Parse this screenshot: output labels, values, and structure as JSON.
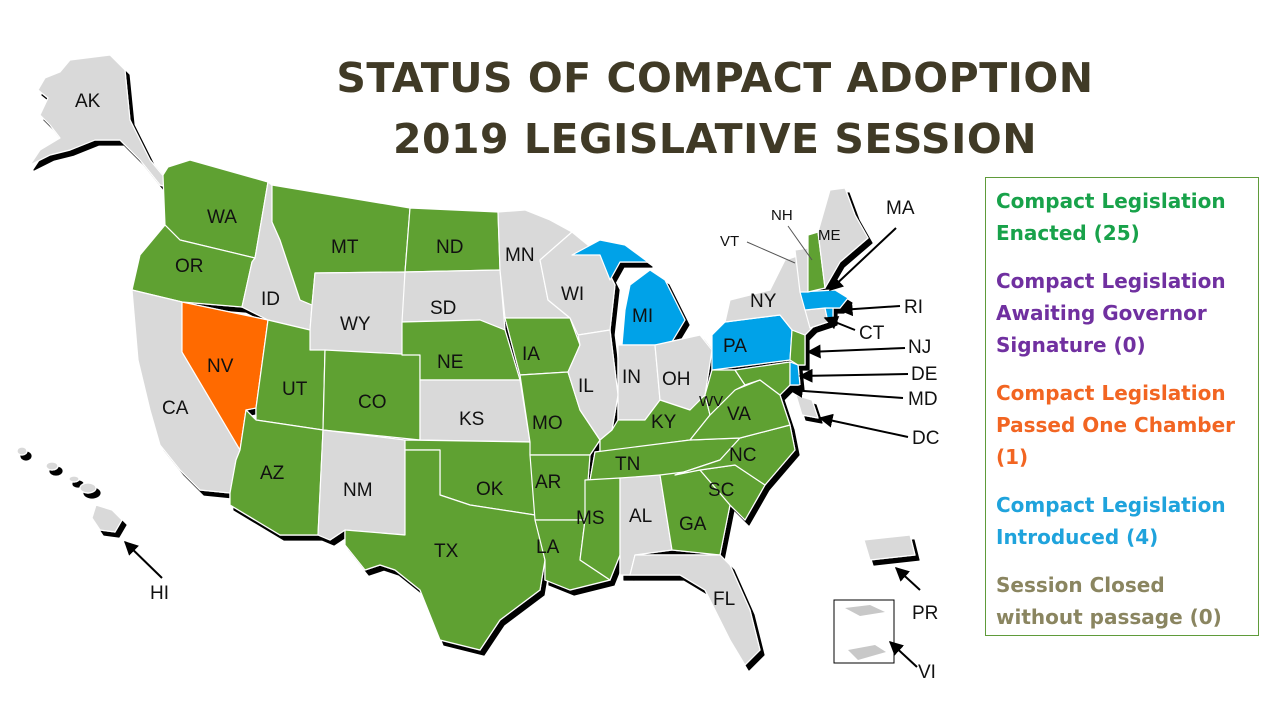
{
  "title": {
    "line1": "STATUS OF COMPACT ADOPTION",
    "line2": "2019 LEGISLATIVE SESSION"
  },
  "colors": {
    "enacted": "#5fa132",
    "awaiting": "#7030a0",
    "passed_one_chamber": "#ff6a00",
    "introduced": "#00a2e8",
    "none": "#d9d9d9",
    "title": "#403a26"
  },
  "legend": {
    "enacted": "Compact Legislation Enacted (25)",
    "awaiting": "Compact Legislation Awaiting Governor Signature (0)",
    "passed": "Compact Legislation Passed One Chamber (1)",
    "introduced": "Compact Legislation Introduced (4)",
    "closed": "Session Closed without passage (0)"
  },
  "states": {
    "AK": "AK",
    "HI": "HI",
    "WA": "WA",
    "OR": "OR",
    "CA": "CA",
    "ID": "ID",
    "NV": "NV",
    "MT": "MT",
    "WY": "WY",
    "UT": "UT",
    "AZ": "AZ",
    "CO": "CO",
    "NM": "NM",
    "ND": "ND",
    "SD": "SD",
    "NE": "NE",
    "KS": "KS",
    "OK": "OK",
    "TX": "TX",
    "MN": "MN",
    "IA": "IA",
    "MO": "MO",
    "AR": "AR",
    "LA": "LA",
    "WI": "WI",
    "IL": "IL",
    "MI": "MI",
    "IN": "IN",
    "OH": "OH",
    "KY": "KY",
    "TN": "TN",
    "MS": "MS",
    "AL": "AL",
    "GA": "GA",
    "FL": "FL",
    "SC": "SC",
    "NC": "NC",
    "VA": "VA",
    "WV": "WV",
    "PA": "PA",
    "NY": "NY",
    "VT": "VT",
    "NH": "NH",
    "ME": "ME",
    "MA": "MA",
    "RI": "RI",
    "CT": "CT",
    "NJ": "NJ",
    "DE": "DE",
    "MD": "MD",
    "DC": "DC",
    "PR": "PR",
    "VI": "VI"
  }
}
